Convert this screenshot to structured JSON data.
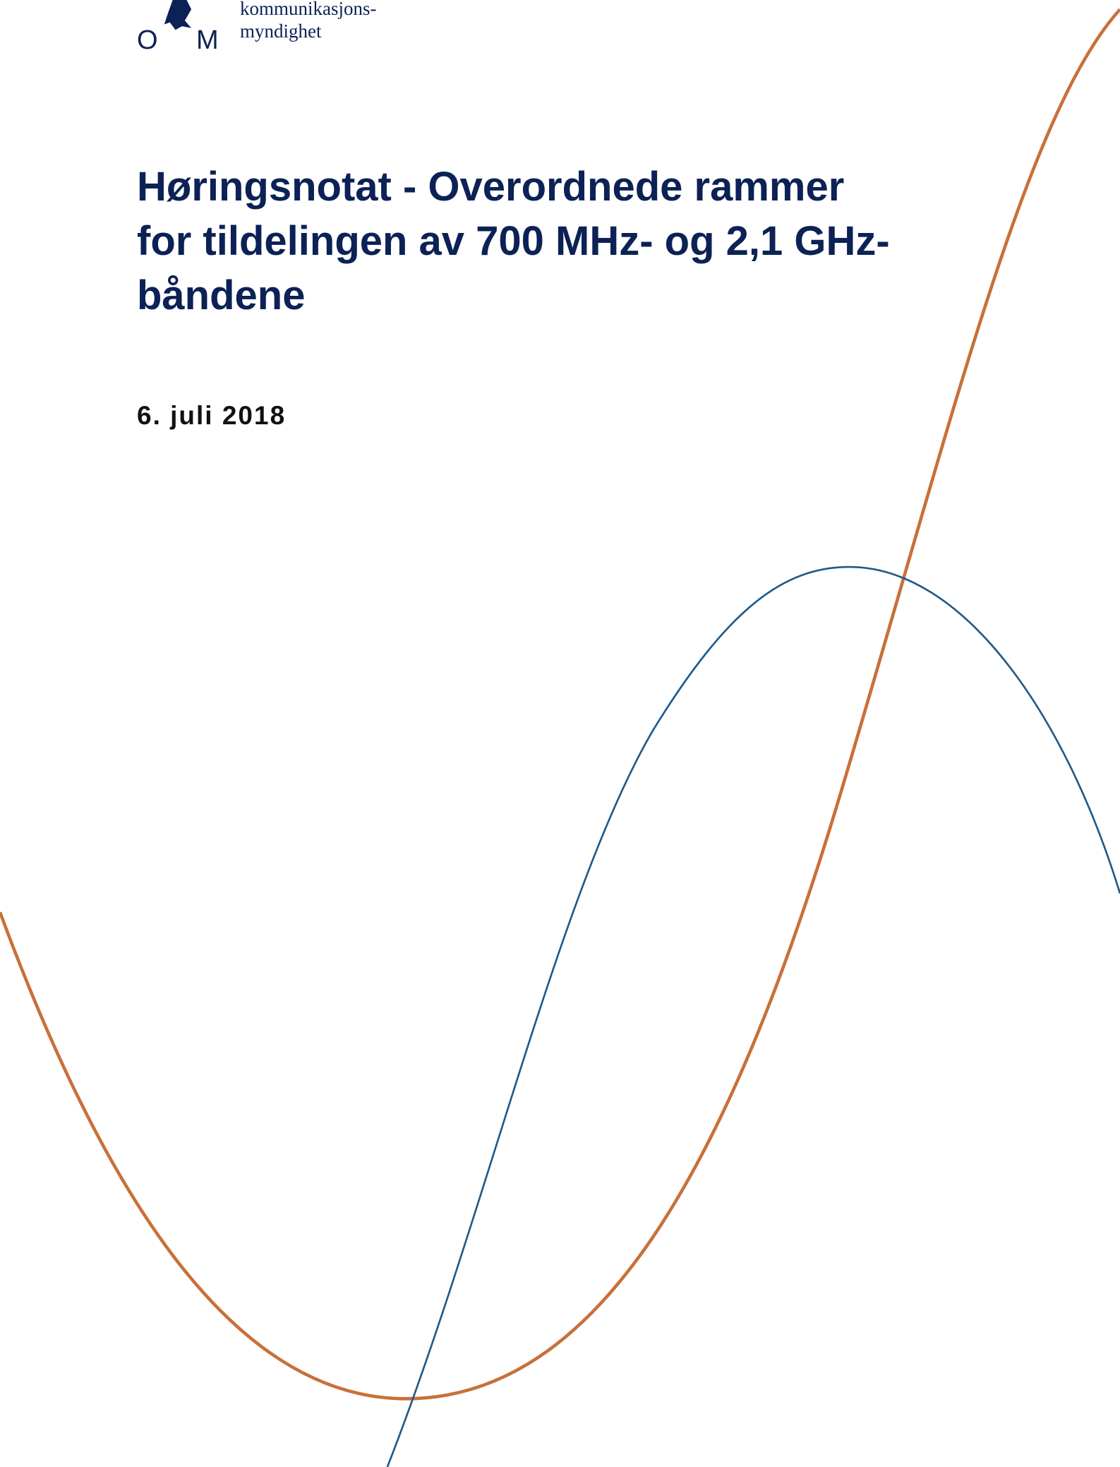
{
  "header": {
    "organization_lines": [
      "kommunikasjons-",
      "myndighet"
    ],
    "logo_letters": [
      "O",
      "M"
    ]
  },
  "title_lines": [
    "Høringsnotat - Overordnede rammer",
    "for tildelingen av 700 MHz- og 2,1 GHz-",
    "båndene"
  ],
  "date": "6. juli 2018"
}
